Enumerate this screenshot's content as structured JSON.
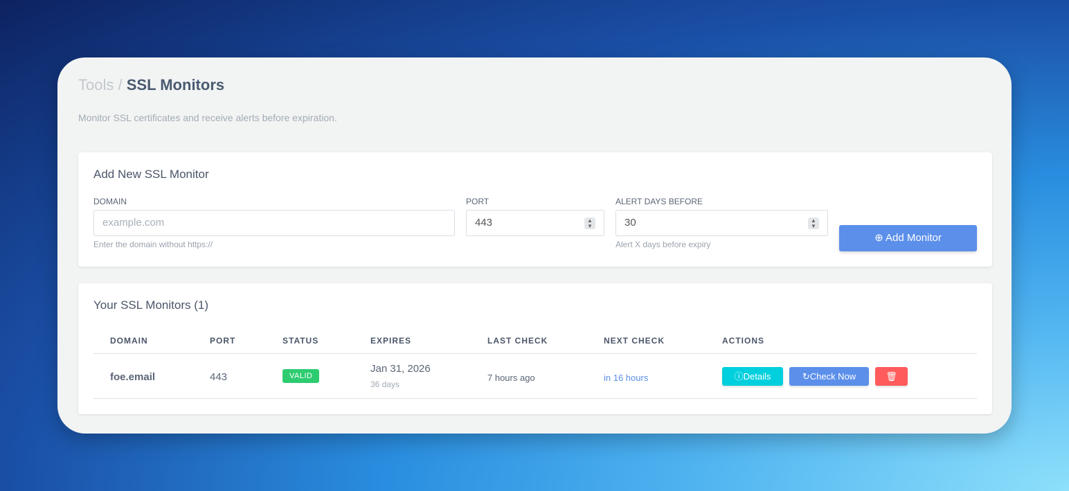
{
  "breadcrumb": {
    "parent": "Tools",
    "separator": "/",
    "current": "SSL Monitors"
  },
  "subtitle": "Monitor SSL certificates and receive alerts before expiration.",
  "add_form": {
    "title": "Add New SSL Monitor",
    "domain": {
      "label": "DOMAIN",
      "placeholder": "example.com",
      "hint": "Enter the domain without https://"
    },
    "port": {
      "label": "PORT",
      "value": "443"
    },
    "alert_days": {
      "label": "ALERT DAYS BEFORE",
      "value": "30",
      "hint": "Alert X days before expiry"
    },
    "submit_label": "Add Monitor",
    "submit_icon": "plus-circle-icon"
  },
  "monitors": {
    "title": "Your SSL Monitors (1)",
    "columns": [
      "DOMAIN",
      "PORT",
      "STATUS",
      "EXPIRES",
      "LAST CHECK",
      "NEXT CHECK",
      "ACTIONS"
    ],
    "rows": [
      {
        "domain": "foe.email",
        "port": "443",
        "status": "VALID",
        "expires": "Jan 31, 2026",
        "expires_in": "36 days",
        "last_check": "7 hours ago",
        "next_check": "in 16 hours",
        "details_label": "Details",
        "check_label": "Check Now"
      }
    ]
  },
  "colors": {
    "accent": "#5b8fea",
    "valid": "#2ecc71",
    "details": "#00cfdd",
    "delete": "#ff5b5c"
  }
}
